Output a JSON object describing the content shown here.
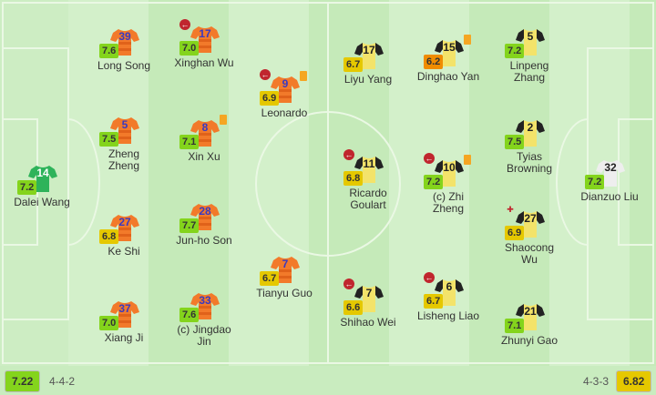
{
  "home": {
    "team_rating": "7.22",
    "formation": "4-4-2",
    "shirt_color": "#f27a2a",
    "players": [
      {
        "number": "14",
        "name": "Dalei Wang",
        "rating": "7.2",
        "gk": true
      },
      {
        "number": "39",
        "name": "Long Song",
        "rating": "7.6"
      },
      {
        "number": "5",
        "name": "Zheng Zheng",
        "rating": "7.5"
      },
      {
        "number": "27",
        "name": "Ke Shi",
        "rating": "6.8"
      },
      {
        "number": "37",
        "name": "Xiang Ji",
        "rating": "7.0"
      },
      {
        "number": "17",
        "name": "Xinghan Wu",
        "rating": "7.0",
        "subbed_off": true
      },
      {
        "number": "8",
        "name": "Xin Xu",
        "rating": "7.1",
        "yellow_card": true
      },
      {
        "number": "28",
        "name": "Jun-ho Son",
        "rating": "7.7"
      },
      {
        "number": "33",
        "name": "(c) Jingdao Jin",
        "rating": "7.6"
      },
      {
        "number": "9",
        "name": "Leonardo",
        "rating": "6.9",
        "subbed_off": true,
        "yellow_card": true
      },
      {
        "number": "7",
        "name": "Tianyu Guo",
        "rating": "6.7"
      }
    ]
  },
  "away": {
    "team_rating": "6.82",
    "formation": "4-3-3",
    "shirt_color": "#f3e36a",
    "players": [
      {
        "number": "17",
        "name": "Liyu Yang",
        "rating": "6.7"
      },
      {
        "number": "11",
        "name": "Ricardo Goulart",
        "rating": "6.8",
        "subbed_off": true
      },
      {
        "number": "7",
        "name": "Shihao Wei",
        "rating": "6.6",
        "subbed_off": true
      },
      {
        "number": "15",
        "name": "Dinghao Yan",
        "rating": "6.2",
        "yellow_card": true
      },
      {
        "number": "10",
        "name": "(c) Zhi Zheng",
        "rating": "7.2",
        "subbed_off": true,
        "yellow_card": true
      },
      {
        "number": "6",
        "name": "Lisheng Liao",
        "rating": "6.7",
        "subbed_off": true
      },
      {
        "number": "5",
        "name": "Linpeng Zhang",
        "rating": "7.2"
      },
      {
        "number": "2",
        "name": "Tyias Browning",
        "rating": "7.5"
      },
      {
        "number": "27",
        "name": "Shaocong Wu",
        "rating": "6.9",
        "injury": true
      },
      {
        "number": "21",
        "name": "Zhunyi Gao",
        "rating": "7.1"
      },
      {
        "number": "32",
        "name": "Dianzuo Liu",
        "rating": "7.2",
        "gk": true
      }
    ]
  },
  "rating_colors": {
    "high": "#84d41c",
    "mid": "#e5c800",
    "low": "#f08c00"
  }
}
